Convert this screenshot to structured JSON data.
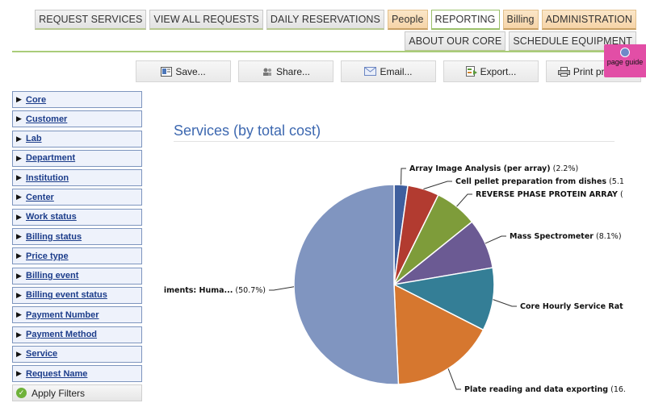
{
  "nav": {
    "row1": [
      {
        "label": "REQUEST SERVICES",
        "style": "normal"
      },
      {
        "label": "VIEW ALL REQUESTS",
        "style": "normal"
      },
      {
        "label": "DAILY RESERVATIONS",
        "style": "normal"
      },
      {
        "label": "People",
        "style": "orange"
      },
      {
        "label": "REPORTING",
        "style": "active"
      },
      {
        "label": "Billing",
        "style": "orange"
      },
      {
        "label": "ADMINISTRATION",
        "style": "orange"
      }
    ],
    "row2": [
      {
        "label": "ABOUT OUR CORE",
        "style": "normal"
      },
      {
        "label": "SCHEDULE EQUIPMENT",
        "style": "normal"
      }
    ]
  },
  "toolbar": {
    "save_label": "Save...",
    "share_label": "Share...",
    "email_label": "Email...",
    "export_label": "Export...",
    "print_label": "Print preview"
  },
  "page_guide": {
    "label": "page guide"
  },
  "filters": [
    "Core",
    "Customer",
    "Lab",
    "Department",
    "Institution",
    "Center",
    "Work status",
    "Billing status",
    "Price type",
    "Billing event",
    "Billing event status",
    "Payment Number",
    "Payment Method",
    "Service",
    "Request Name"
  ],
  "apply_filters_label": "Apply Filters",
  "chart": {
    "title": "Services (by total cost)"
  },
  "chart_data": {
    "type": "pie",
    "title": "Services (by total cost)",
    "slices": [
      {
        "label": "Array Image Analysis (per array)",
        "value": 2.2,
        "pct_text": "(2.2%)",
        "color": "#3f5f9e"
      },
      {
        "label": "Cell pellet preparation from dishes",
        "value": 5.1,
        "pct_text": "(5.1",
        "color": "#b23b30"
      },
      {
        "label": "REVERSE PHASE PROTEIN ARRAY",
        "value": 6.9,
        "pct_text": "(",
        "color": "#7e9c3a"
      },
      {
        "label": "Mass Spectrometer",
        "value": 8.1,
        "pct_text": "(8.1%)",
        "color": "#6b5a93"
      },
      {
        "label": "Core Hourly Service Rat",
        "value": 10.2,
        "pct_text": "",
        "color": "#347e96"
      },
      {
        "label": "Plate reading and data exporting",
        "value": 16.8,
        "pct_text": "(16.",
        "color": "#d6772f"
      },
      {
        "label": "iments: Huma...",
        "value": 50.7,
        "pct_text": "(50.7%)",
        "color": "#8095c0"
      }
    ]
  }
}
